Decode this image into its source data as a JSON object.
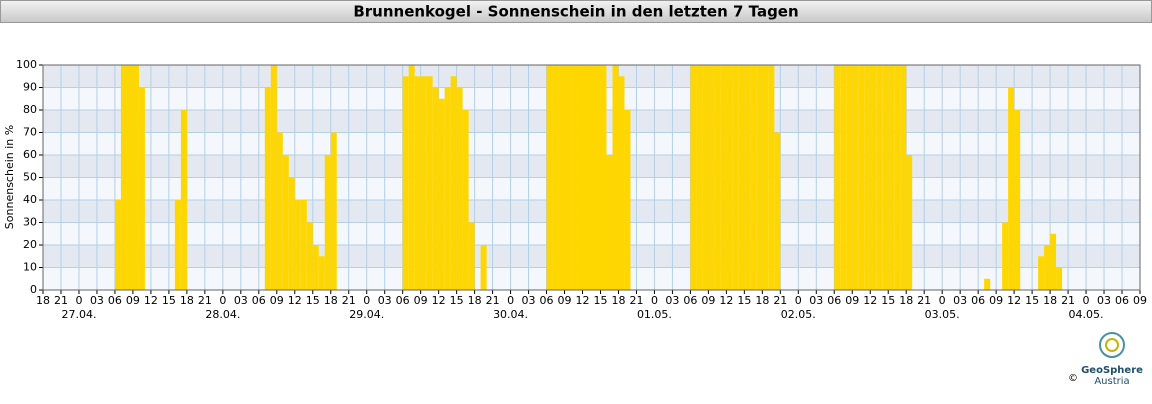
{
  "chart_data": {
    "type": "bar",
    "title": "Brunnenkogel - Sonnenschein in den letzten 7 Tagen",
    "y_label": "Sonnenschein in %",
    "color": "#ffd700",
    "x": [
      12,
      13,
      14,
      15,
      16,
      22,
      23,
      37,
      38,
      39,
      40,
      41,
      42,
      43,
      44,
      45,
      46,
      47,
      48,
      60,
      61,
      62,
      63,
      64,
      65,
      66,
      67,
      68,
      69,
      70,
      71,
      73,
      84,
      85,
      86,
      87,
      88,
      89,
      90,
      91,
      92,
      93,
      94,
      95,
      96,
      97,
      108,
      109,
      110,
      111,
      112,
      113,
      114,
      115,
      116,
      117,
      118,
      119,
      120,
      121,
      122,
      132,
      133,
      134,
      135,
      136,
      137,
      138,
      139,
      140,
      141,
      142,
      143,
      144,
      157,
      160,
      161,
      162,
      166,
      167,
      168,
      169
    ],
    "values": [
      40,
      100,
      100,
      100,
      90,
      40,
      80,
      90,
      100,
      70,
      60,
      50,
      40,
      40,
      30,
      20,
      15,
      60,
      70,
      95,
      100,
      95,
      95,
      95,
      90,
      85,
      90,
      95,
      90,
      80,
      30,
      20,
      100,
      100,
      100,
      100,
      100,
      100,
      100,
      100,
      100,
      100,
      60,
      100,
      95,
      80,
      100,
      100,
      100,
      100,
      100,
      100,
      100,
      100,
      100,
      100,
      100,
      100,
      100,
      100,
      70,
      100,
      100,
      100,
      100,
      100,
      100,
      100,
      100,
      100,
      100,
      100,
      100,
      60,
      5,
      30,
      90,
      80,
      15,
      20,
      25,
      10
    ],
    "xlim": [
      0,
      183
    ],
    "xticks": [
      {
        "value": 0,
        "label": "18"
      },
      {
        "value": 3,
        "label": "21"
      },
      {
        "value": 6,
        "label": "0"
      },
      {
        "value": 9,
        "label": "03"
      },
      {
        "value": 12,
        "label": "06"
      },
      {
        "value": 15,
        "label": "09"
      },
      {
        "value": 18,
        "label": "12"
      },
      {
        "value": 21,
        "label": "15"
      },
      {
        "value": 24,
        "label": "18"
      },
      {
        "value": 27,
        "label": "21"
      },
      {
        "value": 30,
        "label": "0"
      },
      {
        "value": 33,
        "label": "03"
      },
      {
        "value": 36,
        "label": "06"
      },
      {
        "value": 39,
        "label": "09"
      },
      {
        "value": 42,
        "label": "12"
      },
      {
        "value": 45,
        "label": "15"
      },
      {
        "value": 48,
        "label": "18"
      },
      {
        "value": 51,
        "label": "21"
      },
      {
        "value": 54,
        "label": "0"
      },
      {
        "value": 57,
        "label": "03"
      },
      {
        "value": 60,
        "label": "06"
      },
      {
        "value": 63,
        "label": "09"
      },
      {
        "value": 66,
        "label": "12"
      },
      {
        "value": 69,
        "label": "15"
      },
      {
        "value": 72,
        "label": "18"
      },
      {
        "value": 75,
        "label": "21"
      },
      {
        "value": 78,
        "label": "0"
      },
      {
        "value": 81,
        "label": "03"
      },
      {
        "value": 84,
        "label": "06"
      },
      {
        "value": 87,
        "label": "09"
      },
      {
        "value": 90,
        "label": "12"
      },
      {
        "value": 93,
        "label": "15"
      },
      {
        "value": 96,
        "label": "18"
      },
      {
        "value": 99,
        "label": "21"
      },
      {
        "value": 102,
        "label": "0"
      },
      {
        "value": 105,
        "label": "03"
      },
      {
        "value": 108,
        "label": "06"
      },
      {
        "value": 111,
        "label": "09"
      },
      {
        "value": 114,
        "label": "12"
      },
      {
        "value": 117,
        "label": "15"
      },
      {
        "value": 120,
        "label": "18"
      },
      {
        "value": 123,
        "label": "21"
      },
      {
        "value": 126,
        "label": "0"
      },
      {
        "value": 129,
        "label": "03"
      },
      {
        "value": 132,
        "label": "06"
      },
      {
        "value": 135,
        "label": "09"
      },
      {
        "value": 138,
        "label": "12"
      },
      {
        "value": 141,
        "label": "15"
      },
      {
        "value": 144,
        "label": "18"
      },
      {
        "value": 147,
        "label": "21"
      },
      {
        "value": 150,
        "label": "0"
      },
      {
        "value": 153,
        "label": "03"
      },
      {
        "value": 156,
        "label": "06"
      },
      {
        "value": 159,
        "label": "09"
      },
      {
        "value": 162,
        "label": "12"
      },
      {
        "value": 165,
        "label": "15"
      },
      {
        "value": 168,
        "label": "18"
      },
      {
        "value": 171,
        "label": "21"
      },
      {
        "value": 174,
        "label": "0"
      },
      {
        "value": 177,
        "label": "03"
      },
      {
        "value": 180,
        "label": "06"
      },
      {
        "value": 183,
        "label": "09"
      }
    ],
    "date_labels": [
      {
        "value": 6,
        "label": "27.04."
      },
      {
        "value": 30,
        "label": "28.04."
      },
      {
        "value": 54,
        "label": "29.04."
      },
      {
        "value": 78,
        "label": "30.04."
      },
      {
        "value": 102,
        "label": "01.05."
      },
      {
        "value": 126,
        "label": "02.05."
      },
      {
        "value": 150,
        "label": "03.05."
      },
      {
        "value": 174,
        "label": "04.05."
      }
    ],
    "ylim": [
      0,
      100
    ],
    "yticks": [
      0,
      10,
      20,
      30,
      40,
      50,
      60,
      70,
      80,
      90,
      100
    ],
    "grid": true
  },
  "logo": {
    "name": "GeoSphere",
    "sub": "Austria",
    "copyright": "©"
  }
}
